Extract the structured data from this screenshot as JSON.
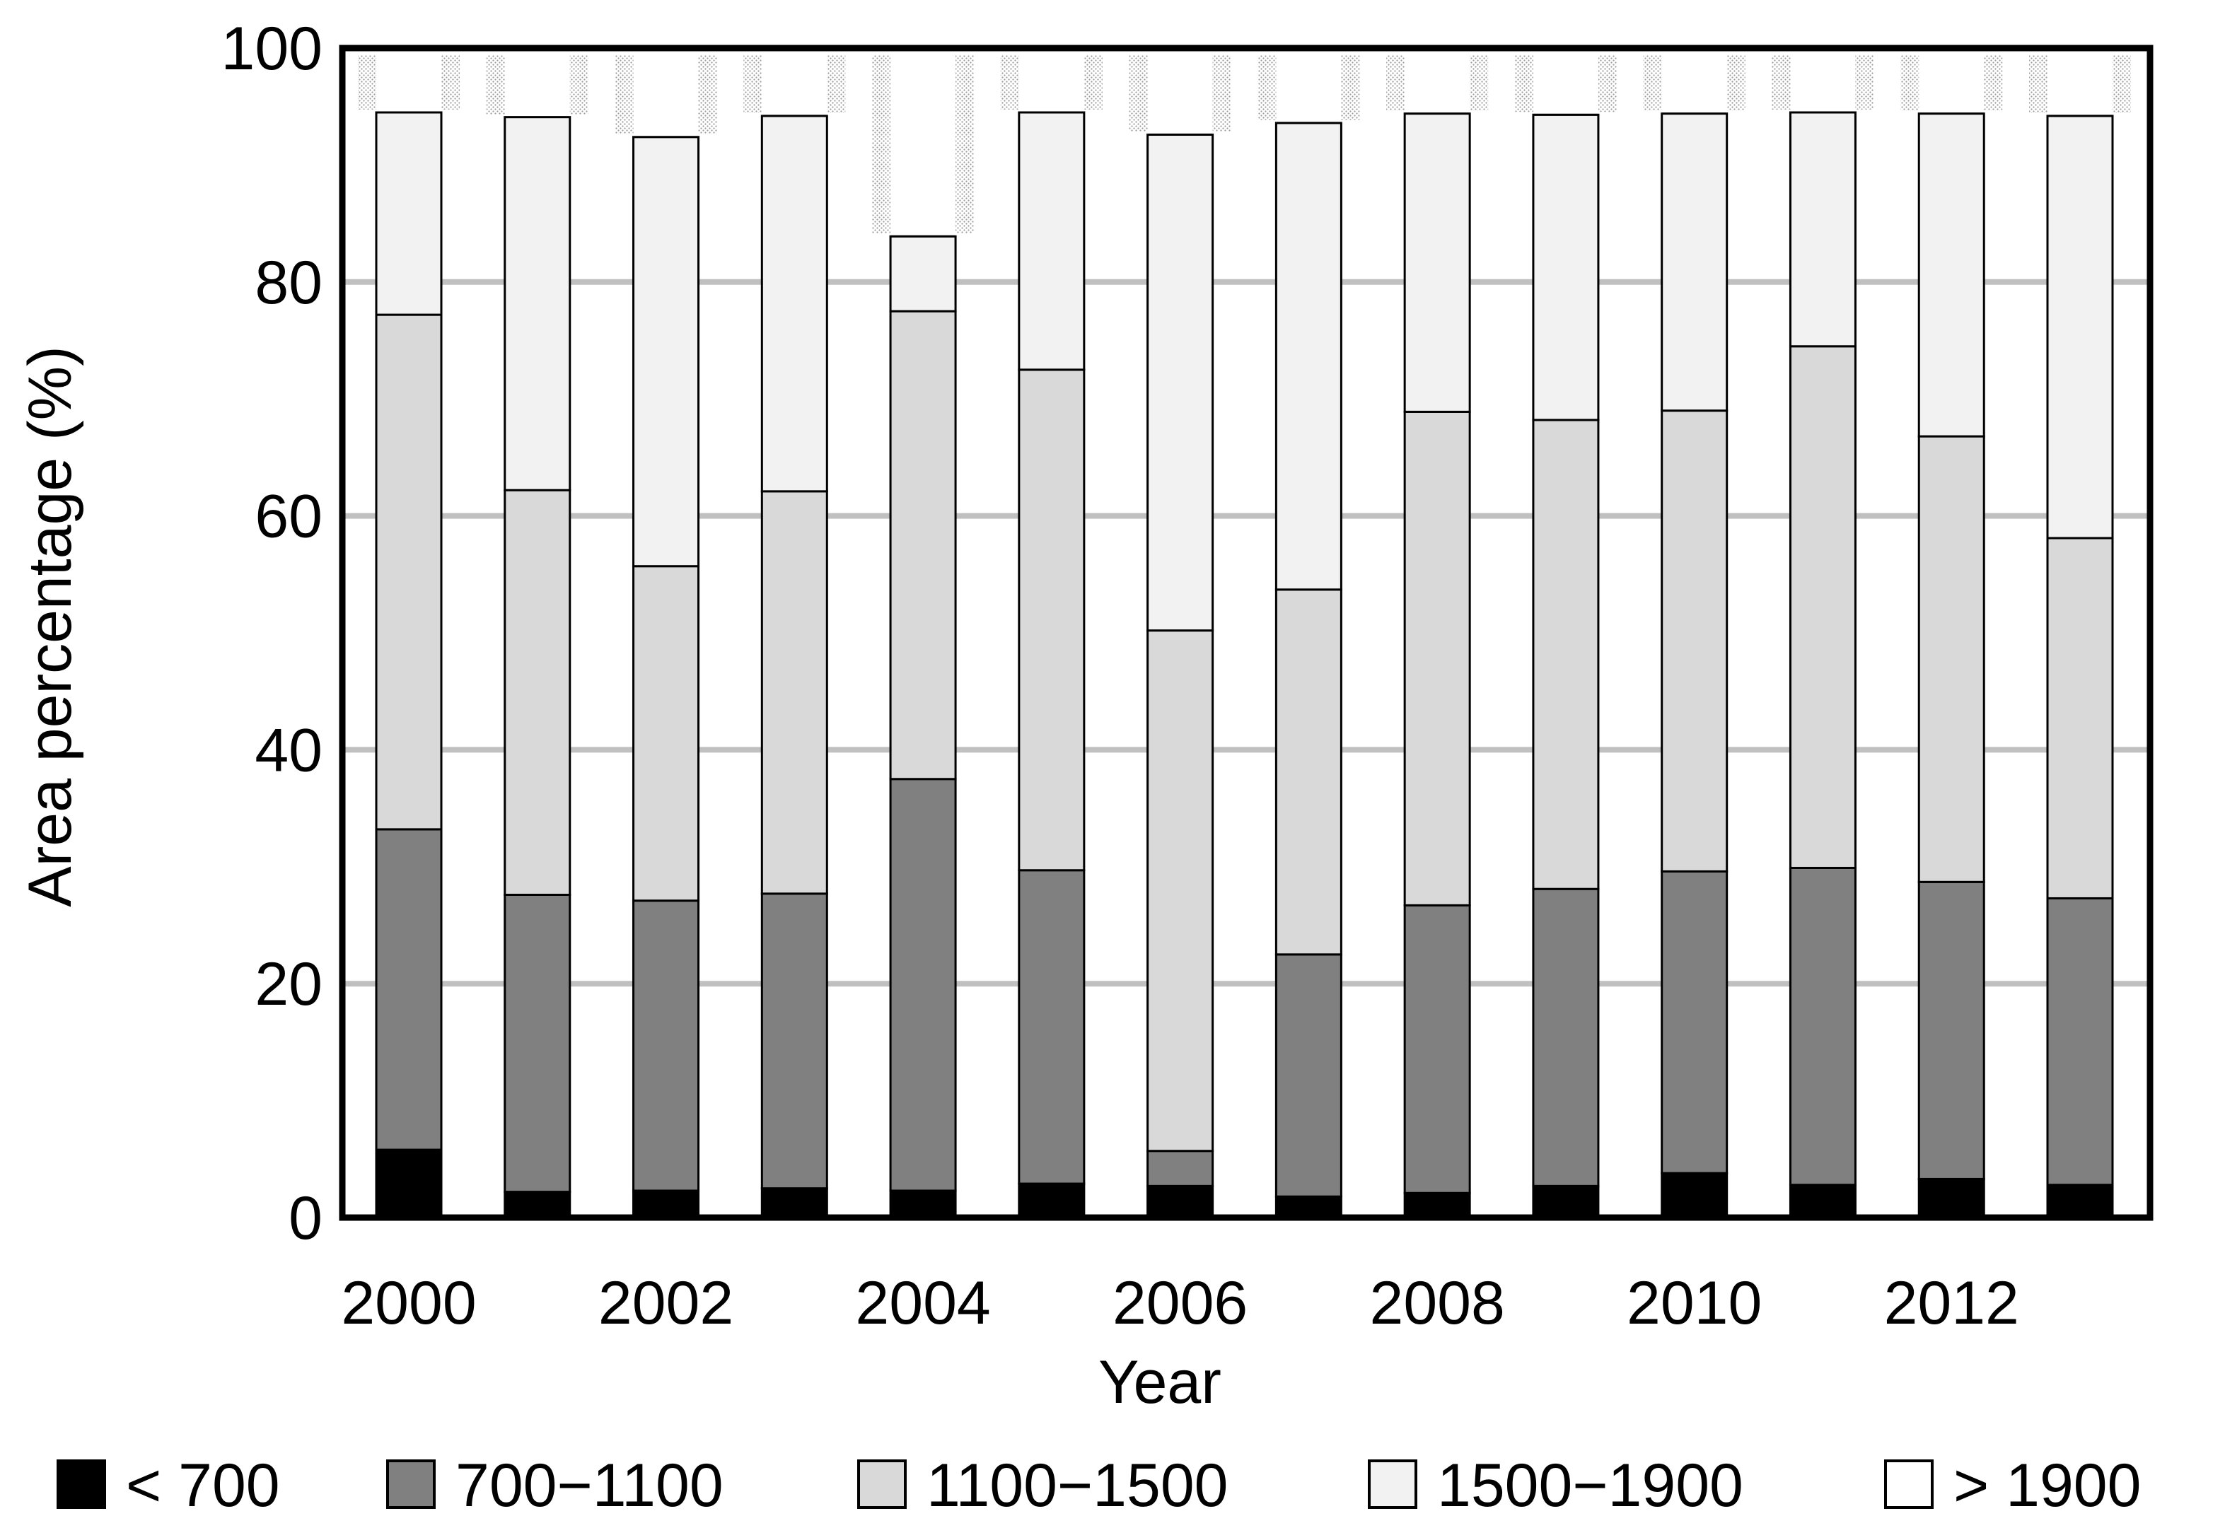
{
  "chart_data": {
    "type": "bar",
    "stacked": true,
    "title": "",
    "xlabel": "Year",
    "ylabel": "Area percentage (%)",
    "ylim": [
      0,
      100
    ],
    "yticks": [
      0,
      20,
      40,
      60,
      80,
      100
    ],
    "grid": "horizontal",
    "legend_position": "bottom",
    "categories": [
      "2000",
      "2001",
      "2002",
      "2003",
      "2004",
      "2005",
      "2006",
      "2007",
      "2008",
      "2009",
      "2010",
      "2011",
      "2012",
      "2013"
    ],
    "xtick_labels": [
      "2000",
      "2002",
      "2004",
      "2006",
      "2008",
      "2010",
      "2012"
    ],
    "series": [
      {
        "name": "< 700",
        "color": "#000000",
        "values": [
          5.8,
          2.2,
          2.3,
          2.5,
          2.3,
          2.9,
          2.7,
          1.8,
          2.1,
          2.7,
          3.8,
          2.8,
          3.3,
          2.8
        ]
      },
      {
        "name": "700−1100",
        "color": "#808080",
        "values": [
          27.4,
          25.4,
          24.8,
          25.2,
          35.2,
          26.8,
          3.0,
          20.7,
          24.6,
          25.4,
          25.8,
          27.1,
          25.4,
          24.5
        ]
      },
      {
        "name": "1100−1500",
        "color": "#d9d9d9",
        "values": [
          44.0,
          34.6,
          28.6,
          34.4,
          40.0,
          42.8,
          44.5,
          31.2,
          42.2,
          40.1,
          39.4,
          44.6,
          38.1,
          30.8
        ]
      },
      {
        "name": "1500−1900",
        "color": "#f2f2f2",
        "values": [
          17.3,
          31.9,
          36.7,
          32.1,
          6.4,
          22.0,
          42.4,
          39.9,
          25.5,
          26.1,
          25.4,
          20.0,
          27.6,
          36.1
        ]
      },
      {
        "name": "> 1900",
        "color": "#ffffff",
        "values": [
          5.5,
          5.9,
          7.6,
          5.8,
          16.1,
          5.5,
          7.4,
          6.4,
          5.6,
          5.7,
          5.6,
          5.5,
          5.6,
          5.8
        ]
      }
    ]
  }
}
